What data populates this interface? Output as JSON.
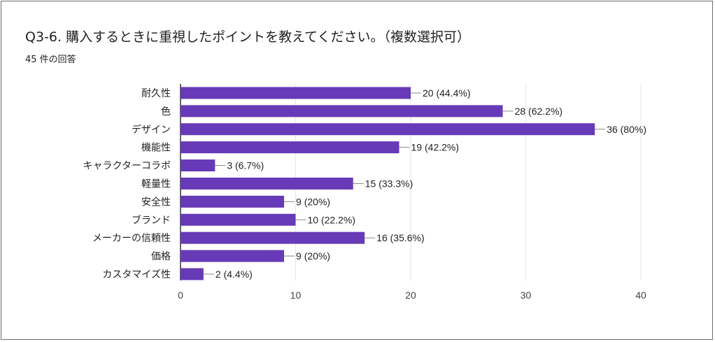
{
  "header": {
    "title": "Q3-6. 購入するときに重視したポイントを教えてください。（複数選択可）",
    "subtitle": "45 件の回答"
  },
  "chart_data": {
    "type": "bar",
    "orientation": "horizontal",
    "categories": [
      "耐久性",
      "色",
      "デザイン",
      "機能性",
      "キャラクターコラボ",
      "軽量性",
      "安全性",
      "ブランド",
      "メーカーの信頼性",
      "価格",
      "カスタマイズ性"
    ],
    "values": [
      20,
      28,
      36,
      19,
      3,
      15,
      9,
      10,
      16,
      9,
      2
    ],
    "data_labels": [
      "20 (44.4%)",
      "28 (62.2%)",
      "36 (80%)",
      "19 (42.2%)",
      "3 (6.7%)",
      "15 (33.3%)",
      "9 (20%)",
      "10 (22.2%)",
      "16 (35.6%)",
      "9 (20%)",
      "2 (4.4%)"
    ],
    "xlim": [
      0,
      40
    ],
    "xticks": [
      "0",
      "10",
      "20",
      "30",
      "40"
    ],
    "grid": true,
    "colors": {
      "bar": "#673ab7",
      "grid": "#e6e6e6",
      "axis": "#333333"
    }
  }
}
